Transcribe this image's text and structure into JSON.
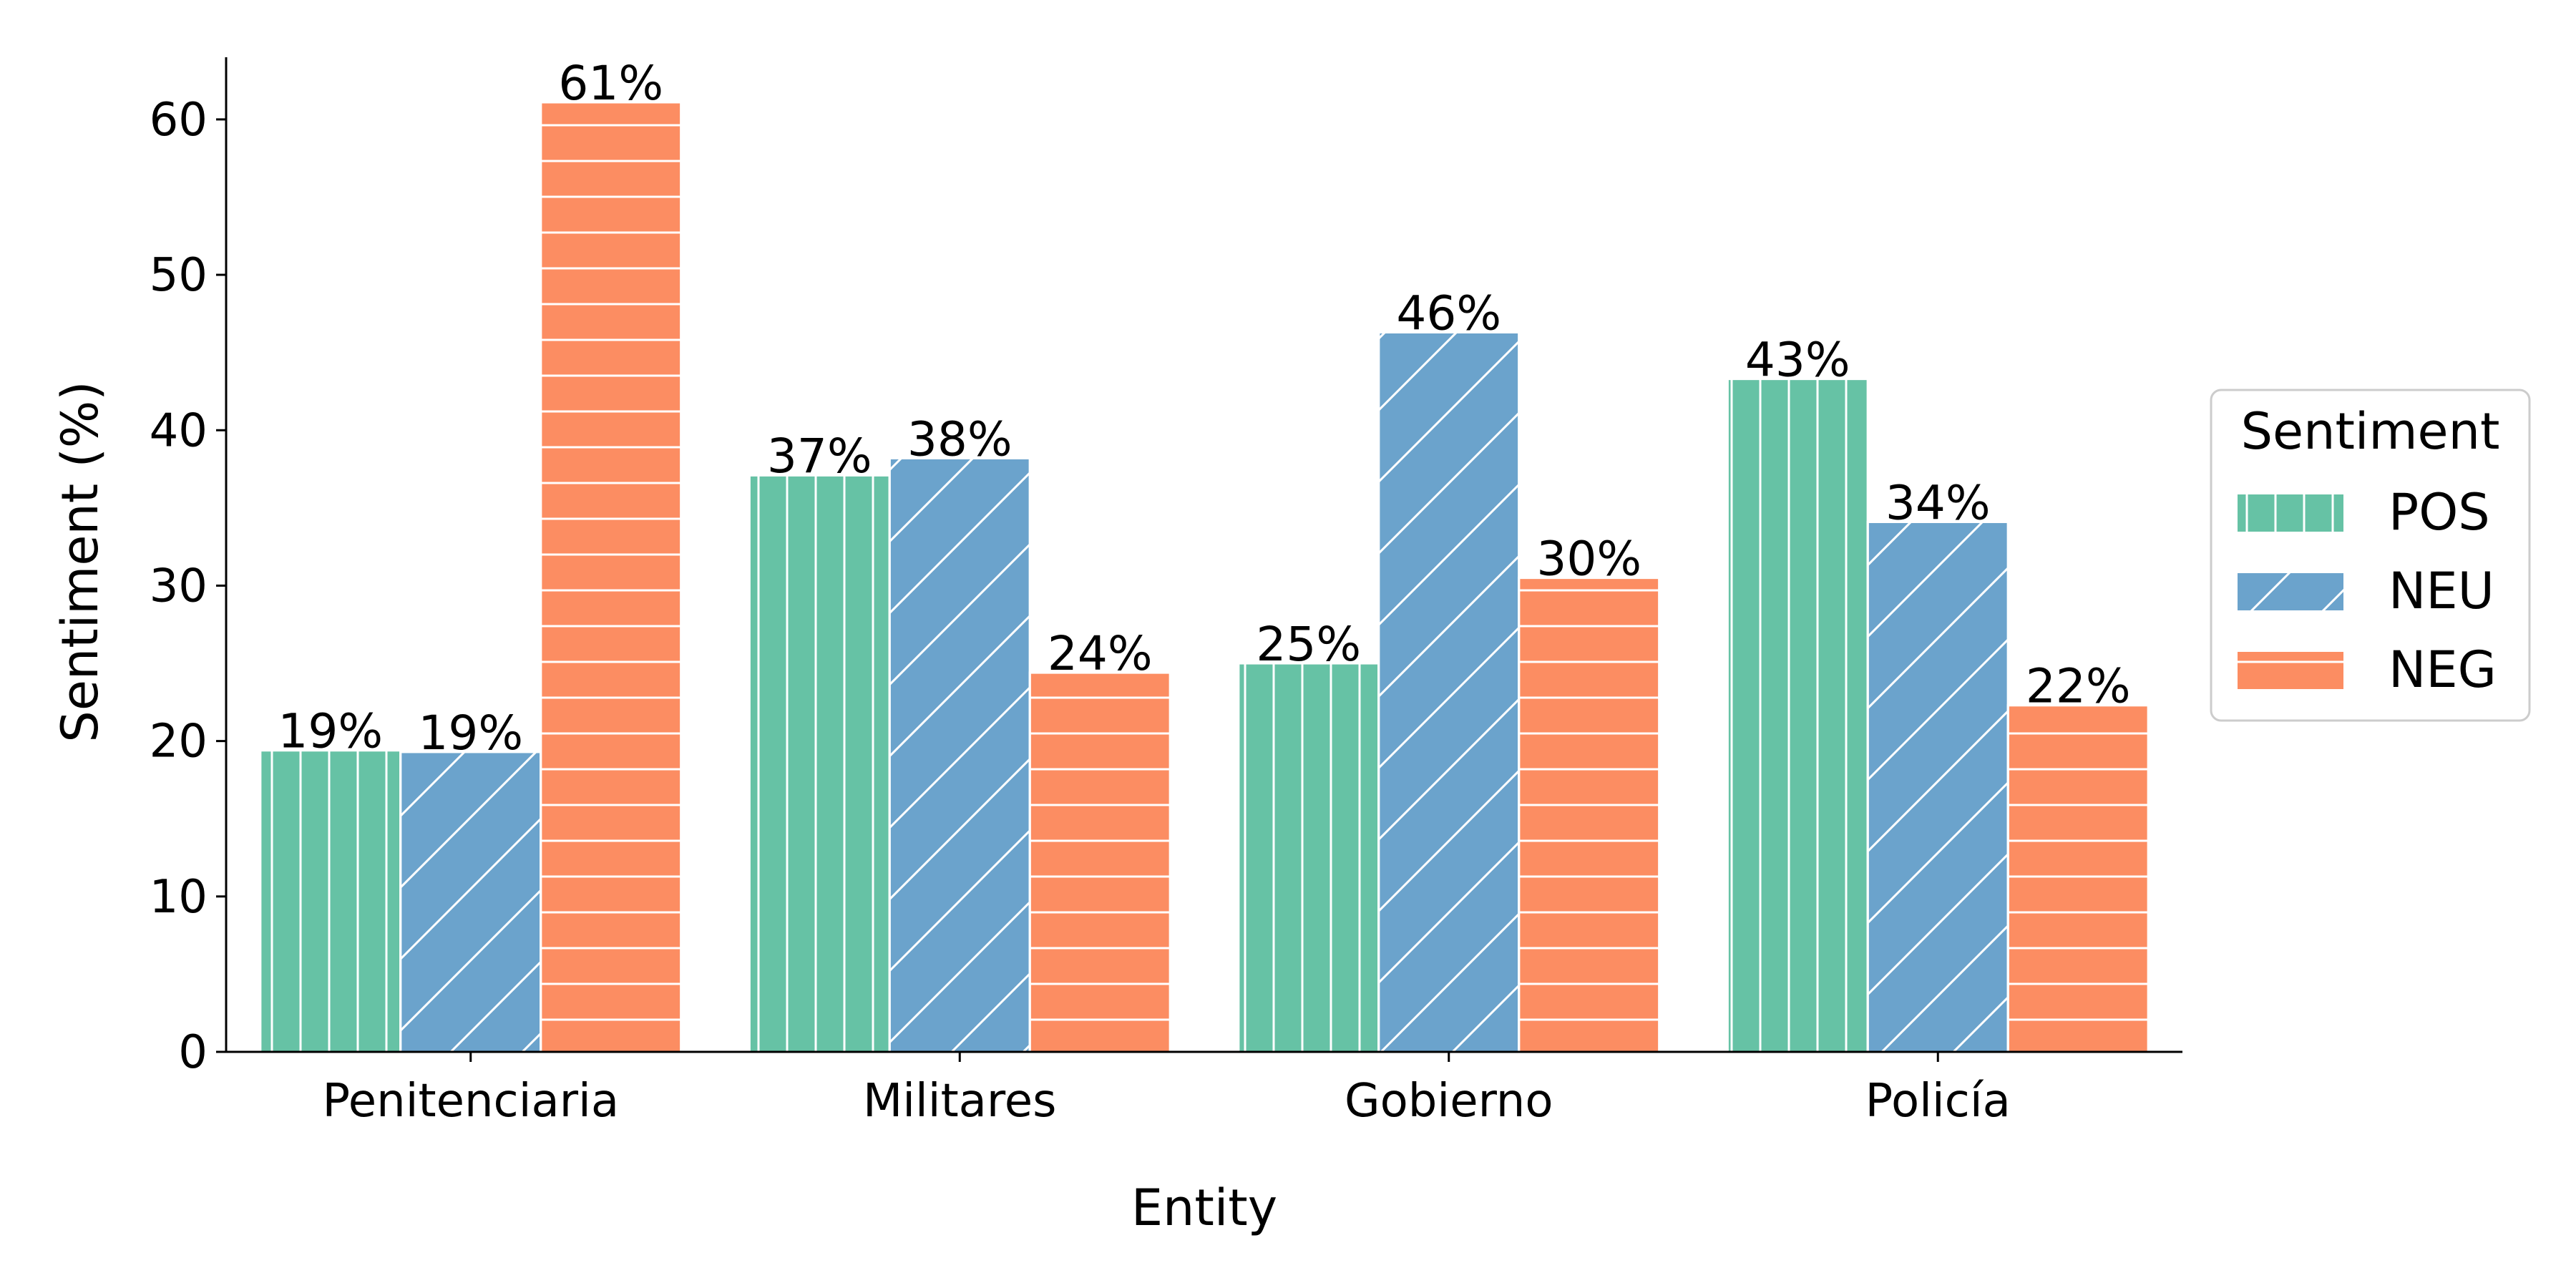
{
  "chart_data": {
    "type": "bar",
    "title": "",
    "xlabel": "Entity",
    "ylabel": "Sentiment (%)",
    "categories": [
      "Penitenciaria",
      "Militares",
      "Gobierno",
      "Policía"
    ],
    "series": [
      {
        "name": "POS",
        "values": [
          19.4,
          37.1,
          25.0,
          43.3
        ],
        "labels": [
          "19%",
          "37%",
          "25%",
          "43%"
        ],
        "color": "#66c2a5",
        "hatch": "vertical"
      },
      {
        "name": "NEU",
        "values": [
          19.3,
          38.2,
          46.3,
          34.1
        ],
        "labels": [
          "19%",
          "38%",
          "46%",
          "34%"
        ],
        "color": "#6ba3cc",
        "hatch": "diagonal"
      },
      {
        "name": "NEG",
        "values": [
          61.1,
          24.4,
          30.5,
          22.3
        ],
        "labels": [
          "61%",
          "24%",
          "30%",
          "22%"
        ],
        "color": "#fc8d62",
        "hatch": "horizontal"
      }
    ],
    "ylim": [
      0,
      64
    ],
    "yticks": [
      0,
      10,
      20,
      30,
      40,
      50,
      60
    ],
    "grid": false,
    "legend": {
      "title": "Sentiment",
      "position": "right"
    }
  }
}
